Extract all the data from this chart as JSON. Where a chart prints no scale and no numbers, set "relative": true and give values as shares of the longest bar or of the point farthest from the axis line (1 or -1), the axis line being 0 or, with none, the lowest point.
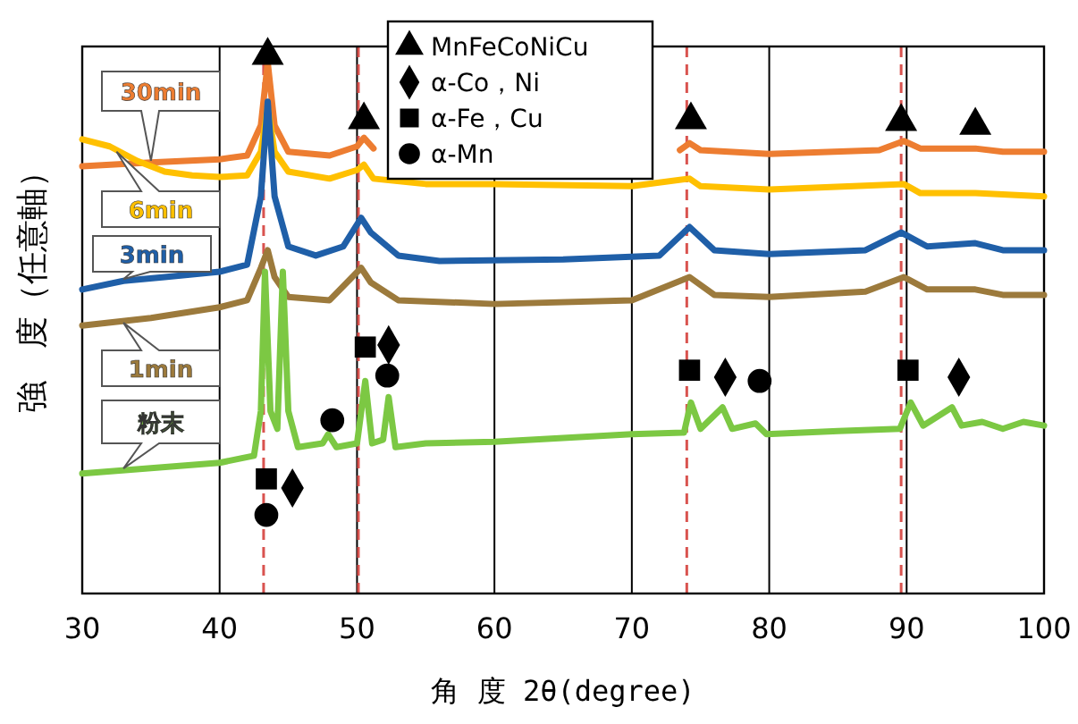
{
  "chart_data": {
    "type": "line",
    "relative": true,
    "xlabel": "角 度 2θ(degree)",
    "ylabel": "強　度（任意軸）",
    "xlim": [
      30,
      100
    ],
    "xticks": [
      30,
      40,
      50,
      60,
      70,
      80,
      90,
      100
    ],
    "grid": "x",
    "legend": "top",
    "line_style": "solid",
    "series": [
      {
        "name": "30min",
        "color": "#ed7d31",
        "x": [
          30,
          35,
          40,
          42,
          43,
          43.5,
          44,
          45,
          48,
          50,
          50.5,
          51.2,
          53,
          60,
          70,
          73.5,
          74.2,
          75,
          80,
          88,
          89.8,
          91,
          95,
          97,
          100
        ],
        "values": [
          0.794,
          0.801,
          0.807,
          0.814,
          0.87,
          0.987,
          0.87,
          0.821,
          0.814,
          0.831,
          0.847,
          0.827,
          null,
          null,
          null,
          0.824,
          0.837,
          0.824,
          0.817,
          0.824,
          0.841,
          0.827,
          0.827,
          0.821,
          0.821
        ]
      },
      {
        "name": "6min",
        "color": "#ffc000",
        "x": [
          30,
          32,
          34,
          36,
          38,
          40,
          42,
          43,
          43.5,
          44,
          45,
          48,
          50,
          50.5,
          51.2,
          55,
          60,
          70,
          74.2,
          75,
          80,
          89.8,
          91,
          95,
          100
        ],
        "values": [
          0.844,
          0.831,
          0.804,
          0.784,
          0.777,
          0.774,
          0.777,
          0.821,
          0.904,
          0.821,
          0.784,
          0.771,
          0.787,
          0.797,
          0.771,
          0.761,
          0.761,
          0.757,
          0.771,
          0.757,
          0.751,
          0.761,
          0.744,
          0.744,
          0.738
        ]
      },
      {
        "name": "3min",
        "color": "#1f5fa8",
        "x": [
          30,
          33,
          36,
          40,
          42,
          43,
          43.5,
          44,
          45,
          47,
          49,
          50.3,
          51,
          53,
          56,
          65,
          72,
          74.2,
          76,
          80,
          87,
          89.6,
          91.5,
          95,
          97,
          100
        ],
        "values": [
          0.565,
          0.581,
          0.588,
          0.598,
          0.611,
          0.738,
          0.914,
          0.738,
          0.645,
          0.628,
          0.645,
          0.698,
          0.671,
          0.628,
          0.618,
          0.621,
          0.628,
          0.681,
          0.638,
          0.631,
          0.638,
          0.671,
          0.645,
          0.651,
          0.638,
          0.638
        ]
      },
      {
        "name": "1min",
        "color": "#9c7a3c",
        "x": [
          30,
          35,
          40,
          42,
          43,
          43.5,
          44,
          45,
          48,
          50.3,
          51,
          53,
          60,
          70,
          74.2,
          76,
          80,
          87,
          89.8,
          91.5,
          95,
          97,
          100
        ],
        "values": [
          0.498,
          0.512,
          0.532,
          0.545,
          0.605,
          0.638,
          0.588,
          0.551,
          0.545,
          0.605,
          0.578,
          0.545,
          0.538,
          0.545,
          0.588,
          0.555,
          0.551,
          0.561,
          0.588,
          0.565,
          0.565,
          0.555,
          0.555
        ]
      },
      {
        "name": "粉末",
        "color": "#7cc843",
        "x": [
          30,
          35,
          40,
          42.5,
          43,
          43.3,
          43.7,
          44.2,
          44.6,
          45,
          45.7,
          47.5,
          47.9,
          48.5,
          50,
          50.6,
          51.1,
          51.9,
          52.3,
          52.8,
          55,
          60,
          70,
          73.8,
          74.3,
          75,
          76.6,
          77.3,
          79,
          79.8,
          85,
          89.5,
          90.3,
          91.2,
          93.3,
          94,
          95.5,
          97,
          98.5,
          100
        ],
        "values": [
          0.223,
          0.233,
          0.243,
          0.256,
          0.339,
          0.598,
          0.339,
          0.306,
          0.598,
          0.339,
          0.272,
          0.279,
          0.296,
          0.272,
          0.279,
          0.395,
          0.279,
          0.286,
          0.365,
          0.272,
          0.279,
          0.282,
          0.296,
          0.299,
          0.355,
          0.306,
          0.346,
          0.306,
          0.316,
          0.296,
          0.302,
          0.306,
          0.355,
          0.312,
          0.346,
          0.312,
          0.319,
          0.306,
          0.319,
          0.312
        ]
      },
      {
        "name": "MnFeCoNiCu",
        "type": "scatter",
        "marker": "triangle",
        "color": "#000000",
        "x": [
          43.5,
          50.5,
          74.3,
          89.6,
          95
        ],
        "values": [
          1.0,
          0.88,
          0.88,
          0.877,
          0.87
        ]
      },
      {
        "name": "α-Co，Ni",
        "type": "scatter",
        "marker": "diamond",
        "color": "#000000",
        "x": [
          45.3,
          52.3,
          76.8,
          93.8
        ],
        "values": [
          0.196,
          0.462,
          0.402,
          0.402
        ]
      },
      {
        "name": "α-Fe，Cu",
        "type": "scatter",
        "marker": "square",
        "color": "#000000",
        "x": [
          43.4,
          50.6,
          74.2,
          90.1
        ],
        "values": [
          0.213,
          0.458,
          0.415,
          0.415
        ]
      },
      {
        "name": "α-Mn",
        "type": "scatter",
        "marker": "circle",
        "color": "#000000",
        "x": [
          43.4,
          48.2,
          52.2,
          79.3
        ],
        "values": [
          0.146,
          0.322,
          0.405,
          0.395
        ]
      }
    ],
    "ref_lines": [
      {
        "axis": "x",
        "value": 43.2,
        "color": "#d9534f",
        "line_style": "dashed"
      },
      {
        "axis": "x",
        "value": 50.1,
        "color": "#d9534f",
        "line_style": "dashed"
      },
      {
        "axis": "x",
        "value": 74.0,
        "color": "#d9534f",
        "line_style": "dashed"
      },
      {
        "axis": "x",
        "value": 89.6,
        "color": "#d9534f",
        "line_style": "dashed"
      }
    ]
  }
}
